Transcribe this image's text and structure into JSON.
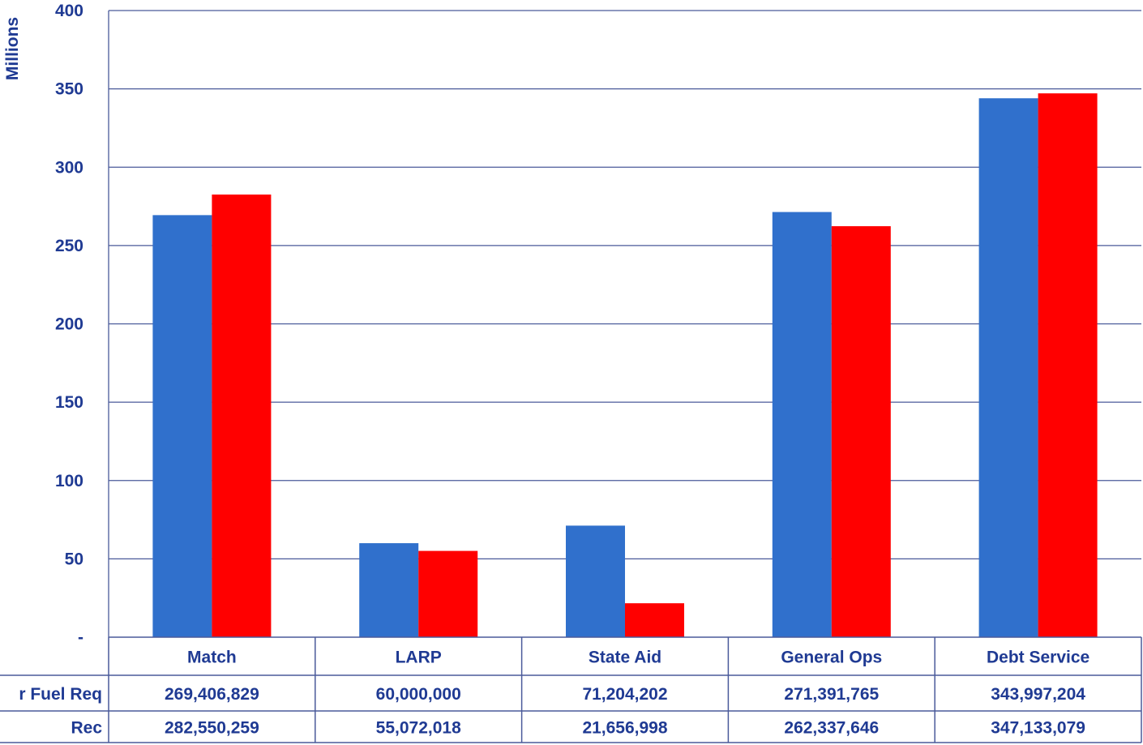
{
  "chart_data": {
    "type": "bar",
    "ylabel": "Millions",
    "ylim": [
      0,
      400
    ],
    "yticks": [
      {
        "value": 0,
        "label": "-"
      },
      {
        "value": 50,
        "label": "50"
      },
      {
        "value": 100,
        "label": "100"
      },
      {
        "value": 150,
        "label": "150"
      },
      {
        "value": 200,
        "label": "200"
      },
      {
        "value": 250,
        "label": "250"
      },
      {
        "value": 300,
        "label": "300"
      },
      {
        "value": 350,
        "label": "350"
      },
      {
        "value": 400,
        "label": "400"
      }
    ],
    "grid": true,
    "categories": [
      "Match",
      "LARP",
      "State Aid",
      "General Ops",
      "Debt Service"
    ],
    "series": [
      {
        "name": "r Fuel Req",
        "color": "#3070cc",
        "values": [
          269.406829,
          60.0,
          71.204202,
          271.391765,
          343.997204
        ],
        "labels": [
          "269,406,829",
          "60,000,000",
          "71,204,202",
          "271,391,765",
          "343,997,204"
        ]
      },
      {
        "name": "Rec",
        "color": "#ff0000",
        "values": [
          282.550259,
          55.072018,
          21.656998,
          262.337646,
          347.133079
        ],
        "labels": [
          "282,550,259",
          "55,072,018",
          "21,656,998",
          "262,337,646",
          "347,133,079"
        ]
      }
    ]
  }
}
